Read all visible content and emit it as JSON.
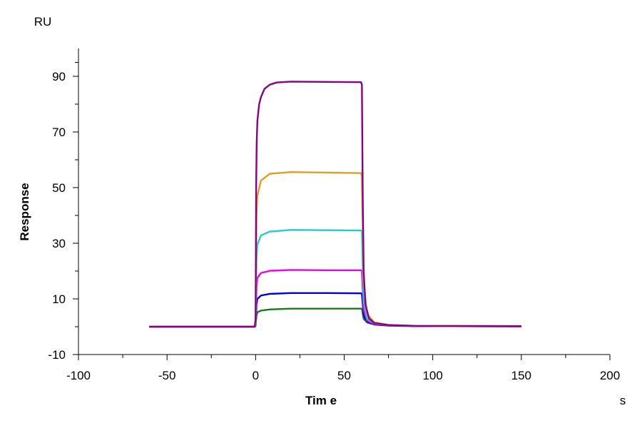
{
  "chart_data": {
    "type": "line",
    "title": "",
    "xlabel": "Tim e",
    "ylabel": "Response",
    "x_unit": "s",
    "y_unit": "RU",
    "xlim": [
      -100,
      200
    ],
    "ylim": [
      -10,
      100
    ],
    "x_ticks": [
      -100,
      -50,
      0,
      50,
      100,
      150,
      200
    ],
    "y_ticks": [
      -10,
      10,
      30,
      50,
      70,
      90
    ],
    "grid": false,
    "legend": "none",
    "series": [
      {
        "color": "#1a7a1a",
        "points": [
          [
            -60,
            0
          ],
          [
            -0.5,
            0
          ],
          [
            0,
            0.3
          ],
          [
            0.5,
            4.0
          ],
          [
            1,
            5.2
          ],
          [
            3,
            5.8
          ],
          [
            8,
            6.2
          ],
          [
            20,
            6.5
          ],
          [
            40,
            6.5
          ],
          [
            59.5,
            6.5
          ],
          [
            60,
            6.4
          ],
          [
            61,
            2.8
          ],
          [
            63,
            1.5
          ],
          [
            67,
            0.8
          ],
          [
            75,
            0.4
          ],
          [
            90,
            0.2
          ],
          [
            150,
            0.1
          ]
        ]
      },
      {
        "color": "#0000dd",
        "points": [
          [
            -60,
            0
          ],
          [
            -0.5,
            0
          ],
          [
            0,
            0.5
          ],
          [
            0.5,
            8.0
          ],
          [
            1,
            10.0
          ],
          [
            3,
            11.2
          ],
          [
            8,
            11.8
          ],
          [
            20,
            12.1
          ],
          [
            40,
            12.1
          ],
          [
            59.5,
            12.0
          ],
          [
            60,
            11.8
          ],
          [
            61,
            4.0
          ],
          [
            63,
            1.8
          ],
          [
            67,
            0.8
          ],
          [
            75,
            0.4
          ],
          [
            90,
            0.2
          ],
          [
            150,
            0.1
          ]
        ]
      },
      {
        "color": "#ee00ee",
        "points": [
          [
            -60,
            0
          ],
          [
            -0.5,
            0
          ],
          [
            0,
            0.8
          ],
          [
            0.5,
            14.0
          ],
          [
            1,
            17.5
          ],
          [
            3,
            19.3
          ],
          [
            8,
            20.1
          ],
          [
            20,
            20.4
          ],
          [
            40,
            20.3
          ],
          [
            59.5,
            20.3
          ],
          [
            60,
            20.0
          ],
          [
            61,
            6.0
          ],
          [
            63,
            2.2
          ],
          [
            67,
            1.0
          ],
          [
            75,
            0.5
          ],
          [
            90,
            0.2
          ],
          [
            150,
            0.1
          ]
        ]
      },
      {
        "color": "#22cccc",
        "points": [
          [
            -60,
            0
          ],
          [
            -0.5,
            0
          ],
          [
            0,
            1.0
          ],
          [
            0.5,
            24.0
          ],
          [
            1,
            29.5
          ],
          [
            3,
            32.8
          ],
          [
            8,
            34.2
          ],
          [
            20,
            34.8
          ],
          [
            40,
            34.7
          ],
          [
            59.5,
            34.6
          ],
          [
            60,
            34.2
          ],
          [
            61,
            9.0
          ],
          [
            63,
            2.8
          ],
          [
            67,
            1.2
          ],
          [
            75,
            0.6
          ],
          [
            90,
            0.3
          ],
          [
            150,
            0.2
          ]
        ]
      },
      {
        "color": "#dda022",
        "points": [
          [
            -60,
            0
          ],
          [
            -0.5,
            0
          ],
          [
            0,
            2.0
          ],
          [
            0.5,
            40.0
          ],
          [
            1,
            47.0
          ],
          [
            3,
            52.5
          ],
          [
            8,
            55.0
          ],
          [
            20,
            55.6
          ],
          [
            40,
            55.4
          ],
          [
            59.5,
            55.2
          ],
          [
            60,
            54.0
          ],
          [
            61,
            16.0
          ],
          [
            63,
            4.5
          ],
          [
            67,
            1.6
          ],
          [
            75,
            0.7
          ],
          [
            90,
            0.3
          ],
          [
            150,
            0.2
          ]
        ]
      },
      {
        "color": "#880088",
        "points": [
          [
            -60,
            0
          ],
          [
            -0.5,
            0
          ],
          [
            0,
            3.0
          ],
          [
            0.3,
            50.0
          ],
          [
            0.6,
            66.0
          ],
          [
            1,
            74.0
          ],
          [
            2,
            80.0
          ],
          [
            3,
            82.5
          ],
          [
            5,
            85.5
          ],
          [
            8,
            87.0
          ],
          [
            12,
            87.8
          ],
          [
            20,
            88.1
          ],
          [
            40,
            88.0
          ],
          [
            59.5,
            87.9
          ],
          [
            60,
            87.0
          ],
          [
            60.5,
            45.0
          ],
          [
            61,
            20.0
          ],
          [
            62,
            8.0
          ],
          [
            64,
            3.0
          ],
          [
            67,
            1.3
          ],
          [
            75,
            0.6
          ],
          [
            90,
            0.3
          ],
          [
            150,
            0.2
          ]
        ]
      }
    ]
  }
}
